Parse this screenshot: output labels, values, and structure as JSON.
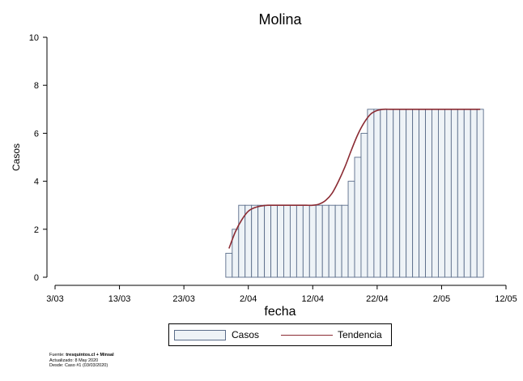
{
  "chart_data": {
    "type": "bar",
    "title": "Molina",
    "xlabel": "fecha",
    "ylabel": "Casos",
    "ylim": [
      0,
      10
    ],
    "yticks": [
      0,
      2,
      4,
      6,
      8,
      10
    ],
    "xlim": [
      "2020-03-03",
      "2020-05-12"
    ],
    "xticks": [
      {
        "date": "2020-03-03",
        "label": "3/03"
      },
      {
        "date": "2020-03-13",
        "label": "13/03"
      },
      {
        "date": "2020-03-23",
        "label": "23/03"
      },
      {
        "date": "2020-04-02",
        "label": "2/04"
      },
      {
        "date": "2020-04-12",
        "label": "12/04"
      },
      {
        "date": "2020-04-22",
        "label": "22/04"
      },
      {
        "date": "2020-05-02",
        "label": "2/05"
      },
      {
        "date": "2020-05-12",
        "label": "12/05"
      }
    ],
    "grid": false,
    "legend_position": "bottom",
    "series": [
      {
        "name": "Casos",
        "type": "bar",
        "color": "#eef3f7",
        "edge_color": "#5b6d8a",
        "x": [
          "2020-03-30",
          "2020-03-31",
          "2020-04-01",
          "2020-04-02",
          "2020-04-03",
          "2020-04-04",
          "2020-04-05",
          "2020-04-06",
          "2020-04-07",
          "2020-04-08",
          "2020-04-09",
          "2020-04-10",
          "2020-04-11",
          "2020-04-12",
          "2020-04-13",
          "2020-04-14",
          "2020-04-15",
          "2020-04-16",
          "2020-04-17",
          "2020-04-18",
          "2020-04-19",
          "2020-04-20",
          "2020-04-21",
          "2020-04-22",
          "2020-04-23",
          "2020-04-24",
          "2020-04-25",
          "2020-04-26",
          "2020-04-27",
          "2020-04-28",
          "2020-04-29",
          "2020-04-30",
          "2020-05-01",
          "2020-05-02",
          "2020-05-03",
          "2020-05-04",
          "2020-05-05",
          "2020-05-06",
          "2020-05-07",
          "2020-05-08"
        ],
        "values": [
          1,
          2,
          3,
          3,
          3,
          3,
          3,
          3,
          3,
          3,
          3,
          3,
          3,
          3,
          3,
          3,
          3,
          3,
          3,
          4,
          5,
          6,
          7,
          7,
          7,
          7,
          7,
          7,
          7,
          7,
          7,
          7,
          7,
          7,
          7,
          7,
          7,
          7,
          7,
          7
        ]
      },
      {
        "name": "Tendencia",
        "type": "line",
        "color": "#8b2b33",
        "x": [
          "2020-03-30",
          "2020-03-31",
          "2020-04-01",
          "2020-04-02",
          "2020-04-03",
          "2020-04-04",
          "2020-04-05",
          "2020-04-06",
          "2020-04-07",
          "2020-04-08",
          "2020-04-09",
          "2020-04-10",
          "2020-04-11",
          "2020-04-12",
          "2020-04-13",
          "2020-04-14",
          "2020-04-15",
          "2020-04-16",
          "2020-04-17",
          "2020-04-18",
          "2020-04-19",
          "2020-04-20",
          "2020-04-21",
          "2020-04-22",
          "2020-04-23",
          "2020-04-24",
          "2020-04-25",
          "2020-04-26",
          "2020-04-27",
          "2020-04-28",
          "2020-04-29",
          "2020-04-30",
          "2020-05-01",
          "2020-05-02",
          "2020-05-03",
          "2020-05-04",
          "2020-05-05",
          "2020-05-06",
          "2020-05-07",
          "2020-05-08"
        ],
        "values": [
          1.2,
          1.9,
          2.4,
          2.75,
          2.9,
          2.97,
          3.0,
          3.0,
          3.0,
          3.0,
          3.0,
          3.0,
          3.0,
          3.0,
          3.05,
          3.2,
          3.5,
          4.0,
          4.6,
          5.3,
          5.95,
          6.45,
          6.8,
          6.95,
          7.0,
          7.0,
          7.0,
          7.0,
          7.0,
          7.0,
          7.0,
          7.0,
          7.0,
          7.0,
          7.0,
          7.0,
          7.0,
          7.0,
          7.0,
          7.0
        ]
      }
    ]
  },
  "legend": {
    "bar_label": "Casos",
    "line_label": "Tendencia"
  },
  "source": {
    "prefix": "Fuente: ",
    "bold": "tresquintos.cl + Minsal",
    "updated": "Actualizado: 8 May 2020",
    "since": "Desde: Caso #1  (03/03/2020)"
  }
}
